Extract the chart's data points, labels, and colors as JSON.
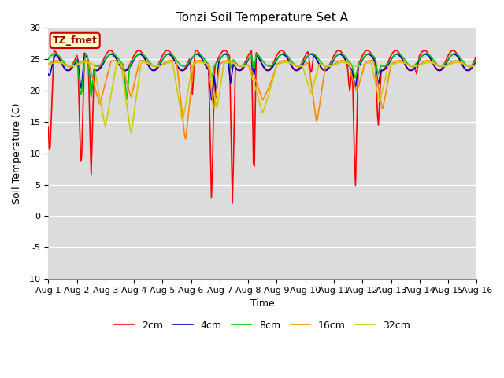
{
  "title": "Tonzi Soil Temperature Set A",
  "xlabel": "Time",
  "ylabel": "Soil Temperature (C)",
  "ylim": [
    -10,
    30
  ],
  "xlim": [
    0,
    15
  ],
  "xtick_labels": [
    "Aug 1",
    "Aug 2",
    "Aug 3",
    "Aug 4",
    "Aug 5",
    "Aug 6",
    "Aug 7",
    "Aug 8",
    "Aug 9",
    "Aug 10",
    "Aug 11",
    "Aug 12",
    "Aug 13",
    "Aug 14",
    "Aug 15",
    "Aug 16"
  ],
  "ytick_values": [
    -10,
    -5,
    0,
    5,
    10,
    15,
    20,
    25,
    30
  ],
  "legend_labels": [
    "2cm",
    "4cm",
    "8cm",
    "16cm",
    "32cm"
  ],
  "line_colors": [
    "#ff0000",
    "#0000cc",
    "#00cc00",
    "#ff8800",
    "#cccc00"
  ],
  "annotation_text": "TZ_fmet",
  "annotation_bbox_facecolor": "#ffffcc",
  "annotation_bbox_edgecolor": "#cc0000",
  "background_color": "#dcdcdc",
  "title_fontsize": 11,
  "axis_label_fontsize": 9,
  "tick_fontsize": 8,
  "legend_fontsize": 9,
  "line_width": 1.2
}
